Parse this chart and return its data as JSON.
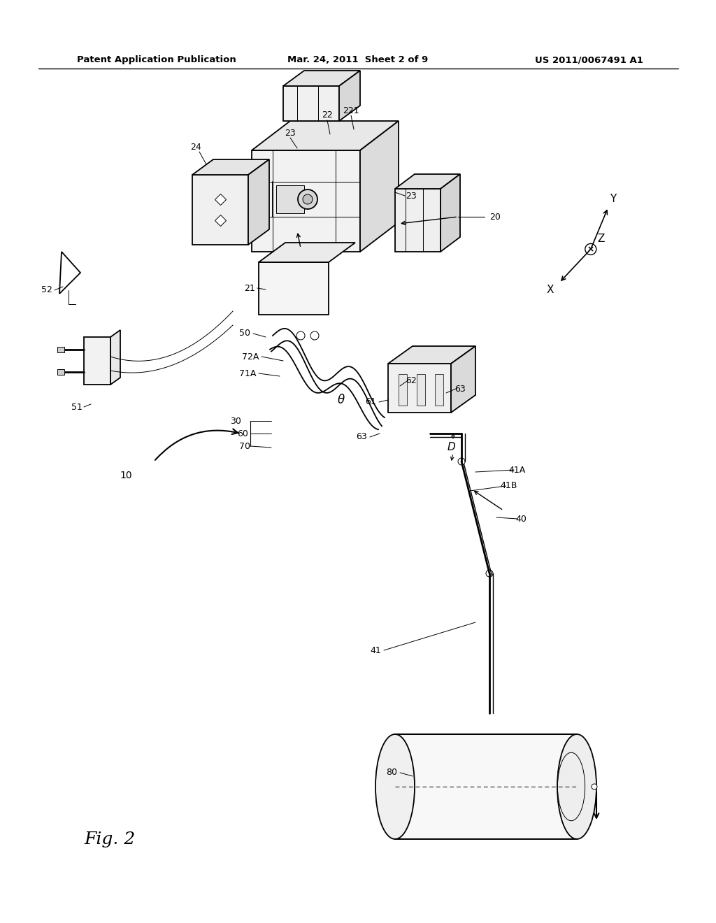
{
  "bg_color": "#ffffff",
  "header_left": "Patent Application Publication",
  "header_center": "Mar. 24, 2011  Sheet 2 of 9",
  "header_right": "US 2011/0067491 A1",
  "figure_label": "Fig. 2",
  "lw_main": 1.3,
  "lw_thin": 0.7,
  "lw_detail": 0.5,
  "fs_label": 9,
  "fs_fig": 18
}
